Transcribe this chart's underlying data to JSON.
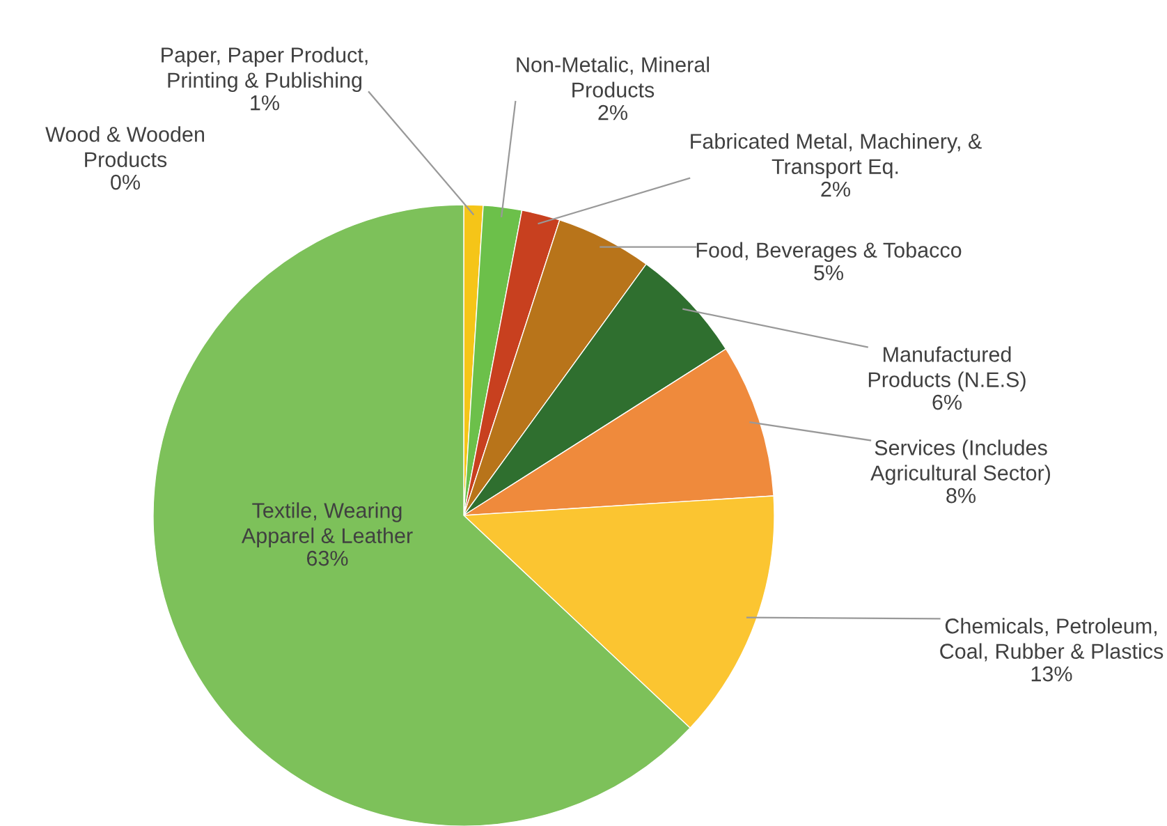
{
  "chart_data": {
    "type": "pie",
    "categories": [
      "Wood & Wooden\nProducts",
      "Paper, Paper Product,\nPrinting & Publishing",
      "Non-Metalic, Mineral\nProducts",
      "Fabricated Metal, Machinery, &\nTransport Eq.",
      "Food, Beverages & Tobacco",
      "Manufactured\nProducts (N.E.S)",
      "Services (Includes\nAgricultural Sector)",
      "Chemicals, Petroleum,\nCoal, Rubber & Plastics",
      "Textile, Wearing\nApparel & Leather"
    ],
    "values": [
      0,
      1,
      2,
      2,
      5,
      6,
      8,
      13,
      63
    ],
    "value_labels": [
      "0%",
      "1%",
      "2%",
      "2%",
      "5%",
      "6%",
      "8%",
      "13%",
      "63%"
    ],
    "colors": [
      "#f08a24",
      "#f5c518",
      "#6cc04a",
      "#c8401f",
      "#b8741a",
      "#2f6f2f",
      "#ef8a3c",
      "#fbc531",
      "#7dc15a"
    ]
  }
}
